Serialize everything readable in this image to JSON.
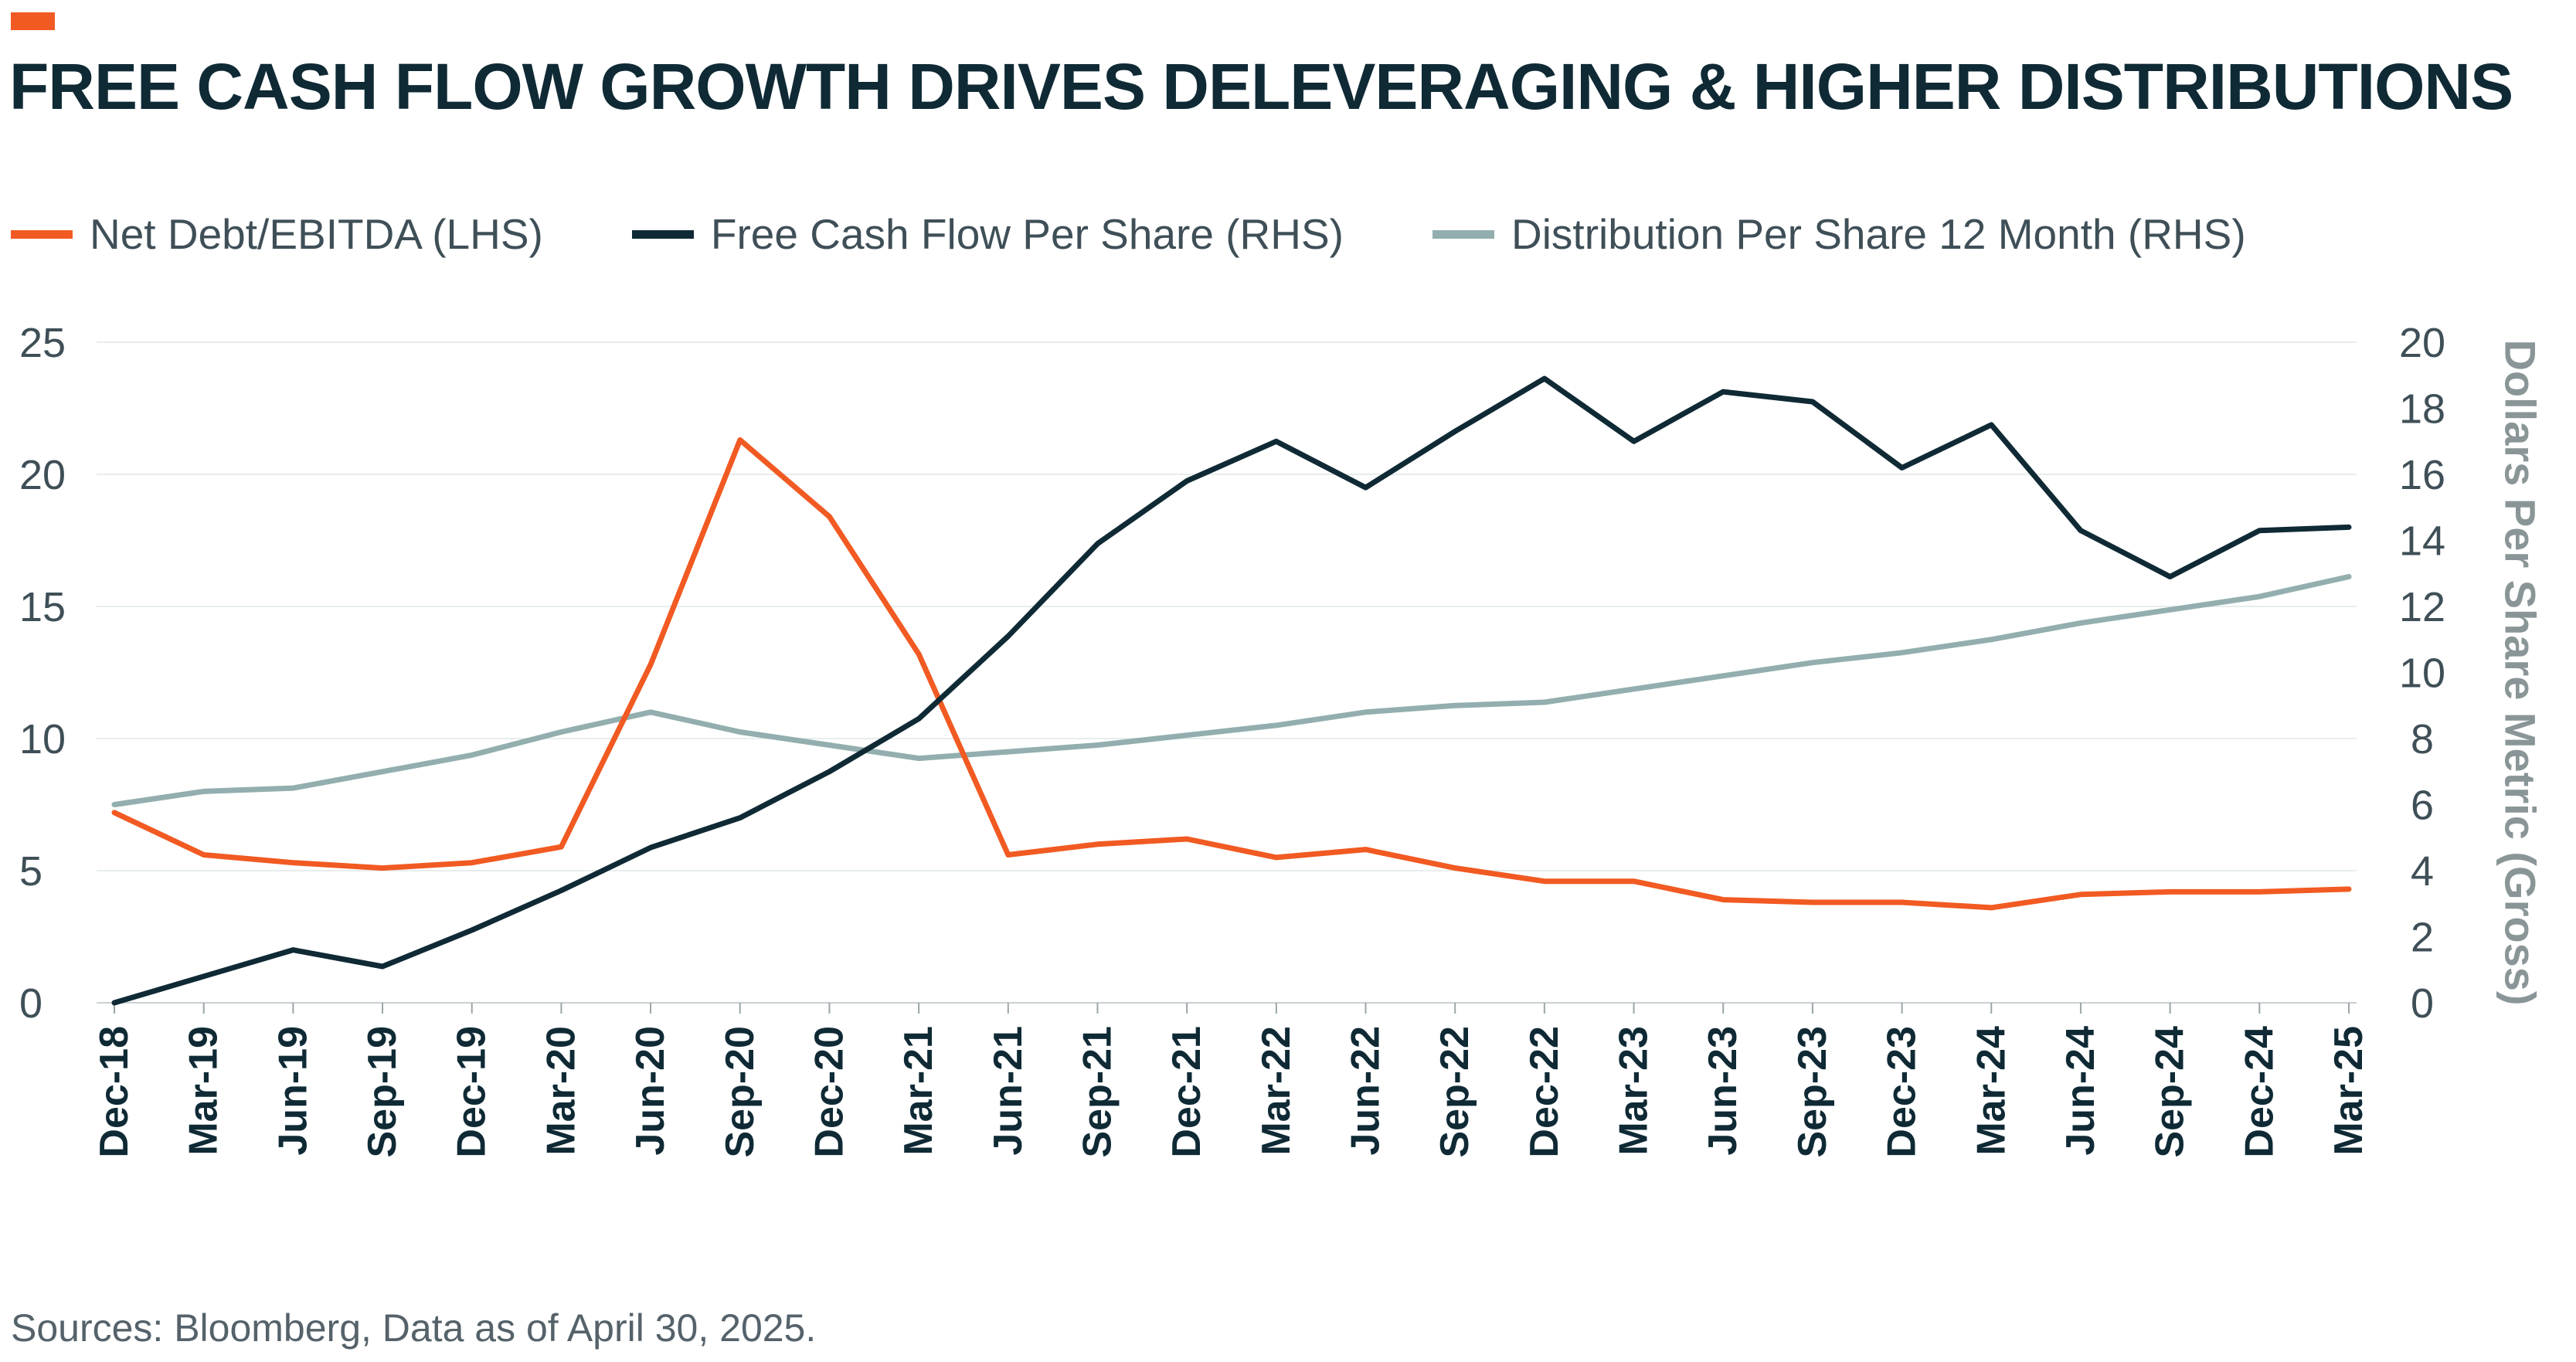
{
  "header": {
    "title": "FREE CASH FLOW GROWTH DRIVES DELEVERAGING & HIGHER DISTRIBUTIONS"
  },
  "footer": {
    "source": "Sources: Bloomberg, Data as of April 30, 2025."
  },
  "colors": {
    "accent": "#f15a22",
    "net_debt": "#f15a22",
    "fcf": "#0f2a35",
    "distribution": "#93aeae",
    "grid": "#e8eded",
    "axis_text": "#3f4f57",
    "tick_text": "#0f2a35"
  },
  "chart_data": {
    "type": "line",
    "categories": [
      "Dec-18",
      "Mar-19",
      "Jun-19",
      "Sep-19",
      "Dec-19",
      "Mar-20",
      "Jun-20",
      "Sep-20",
      "Dec-20",
      "Mar-21",
      "Jun-21",
      "Sep-21",
      "Dec-21",
      "Mar-22",
      "Jun-22",
      "Sep-22",
      "Dec-22",
      "Mar-23",
      "Jun-23",
      "Sep-23",
      "Dec-23",
      "Mar-24",
      "Jun-24",
      "Sep-24",
      "Dec-24",
      "Mar-25"
    ],
    "series": [
      {
        "name": "Net Debt/EBITDA (LHS)",
        "axis": "left",
        "color": "#f15a22",
        "values": [
          7.2,
          5.6,
          5.3,
          5.1,
          5.3,
          5.9,
          12.8,
          21.3,
          18.4,
          13.2,
          5.6,
          6.0,
          6.2,
          5.5,
          5.8,
          5.1,
          4.6,
          4.6,
          3.9,
          3.8,
          3.8,
          3.6,
          4.1,
          4.2,
          4.2,
          4.3
        ]
      },
      {
        "name": "Free Cash Flow Per Share (RHS)",
        "axis": "right",
        "color": "#0f2a35",
        "values": [
          0.0,
          0.8,
          1.6,
          1.1,
          2.2,
          3.4,
          4.7,
          5.6,
          7.0,
          8.6,
          11.1,
          13.9,
          15.8,
          17.0,
          15.6,
          17.3,
          18.9,
          17.0,
          18.5,
          18.2,
          16.2,
          17.5,
          14.3,
          12.9,
          14.3,
          14.4
        ]
      },
      {
        "name": "Distribution Per Share 12 Month (RHS)",
        "axis": "right",
        "color": "#93aeae",
        "values": [
          6.0,
          6.4,
          6.5,
          7.0,
          7.5,
          8.2,
          8.8,
          8.2,
          7.8,
          7.4,
          7.6,
          7.8,
          8.1,
          8.4,
          8.8,
          9.0,
          9.1,
          9.5,
          9.9,
          10.3,
          10.6,
          11.0,
          11.5,
          11.9,
          12.3,
          12.9
        ]
      }
    ],
    "y_left": {
      "min": 0,
      "max": 25,
      "ticks": [
        0,
        5,
        10,
        15,
        20,
        25
      ]
    },
    "y_right": {
      "min": 0,
      "max": 20,
      "ticks": [
        0,
        2,
        4,
        6,
        8,
        10,
        12,
        14,
        16,
        18,
        20
      ],
      "label": "Dollars Per Share Metric (Gross)"
    },
    "grid": true,
    "legend_position": "top-left"
  }
}
